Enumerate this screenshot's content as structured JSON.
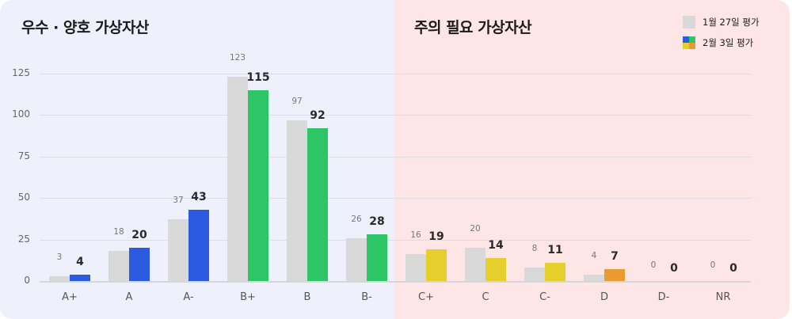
{
  "panels": {
    "left_title": "우수 · 양호 가상자산",
    "right_title": "주의 필요 가상자산"
  },
  "legend": {
    "prev_label": "1월 27일 평가",
    "curr_label": "2월 3일 평가",
    "prev_color": "#d9d9d9",
    "curr_colors": [
      "#2c5be0",
      "#2ec566",
      "#e6cf2c",
      "#e89b2e"
    ]
  },
  "colors": {
    "left_bg": "#eef0fb",
    "right_bg": "#fee5e6",
    "gray": "#d9d9d9",
    "blue": "#2c5be0",
    "green": "#2ec566",
    "yellow": "#e6cf2c",
    "orange": "#e89b2e"
  },
  "chart_data": {
    "type": "bar",
    "title": "",
    "xlabel": "",
    "ylabel": "",
    "ylim": [
      0,
      125
    ],
    "yticks": [
      0,
      25,
      50,
      75,
      100,
      125
    ],
    "grid": true,
    "legend_position": "top-right",
    "categories": [
      "A+",
      "A",
      "A-",
      "B+",
      "B",
      "B-",
      "C+",
      "C",
      "C-",
      "D",
      "D-",
      "NR"
    ],
    "series": [
      {
        "name": "1월 27일 평가",
        "values": [
          3,
          18,
          37,
          123,
          97,
          26,
          16,
          20,
          8,
          4,
          0,
          0
        ],
        "color": "#d9d9d9"
      },
      {
        "name": "2월 3일 평가",
        "values": [
          4,
          20,
          43,
          115,
          92,
          28,
          19,
          14,
          11,
          7,
          0,
          0
        ],
        "colors": [
          "#2c5be0",
          "#2c5be0",
          "#2c5be0",
          "#2ec566",
          "#2ec566",
          "#2ec566",
          "#e6cf2c",
          "#e6cf2c",
          "#e6cf2c",
          "#e89b2e",
          "#e89b2e",
          "#e89b2e"
        ]
      }
    ],
    "groups": [
      {
        "name": "우수 · 양호 가상자산",
        "categories": [
          "A+",
          "A",
          "A-",
          "B+",
          "B",
          "B-"
        ]
      },
      {
        "name": "주의 필요 가상자산",
        "categories": [
          "C+",
          "C",
          "C-",
          "D",
          "D-",
          "NR"
        ]
      }
    ]
  }
}
